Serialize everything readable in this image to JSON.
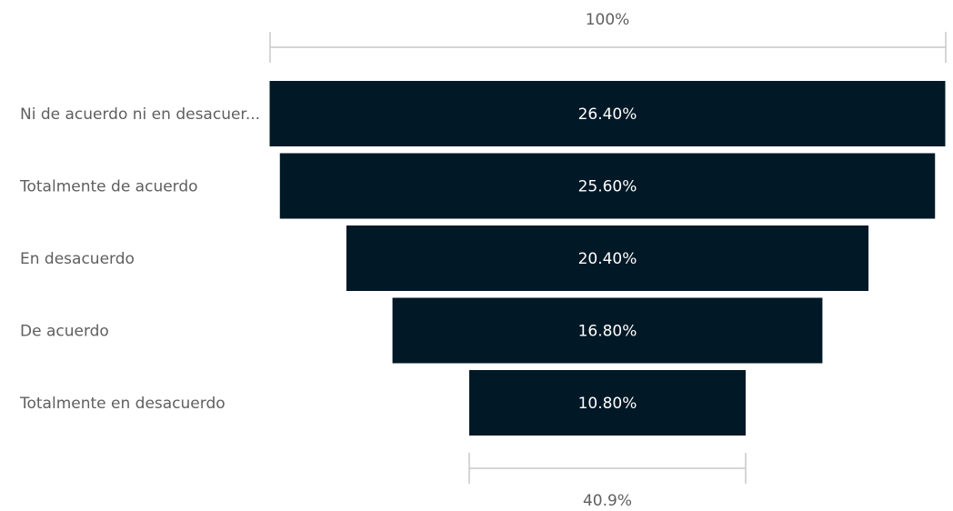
{
  "chart_data": {
    "type": "funnel",
    "categories": [
      "Ni de acuerdo ni en desacuer...",
      "Totalmente de acuerdo",
      "En desacuerdo",
      "De acuerdo",
      "Totalmente en desacuerdo"
    ],
    "values": [
      26.4,
      25.6,
      20.4,
      16.8,
      10.8
    ],
    "data_labels": [
      "26.40%",
      "25.60%",
      "20.40%",
      "16.80%",
      "10.80%"
    ],
    "top_ruler_label": "100%",
    "bottom_ruler_label": "40.9%",
    "bar_color": "#011826"
  }
}
